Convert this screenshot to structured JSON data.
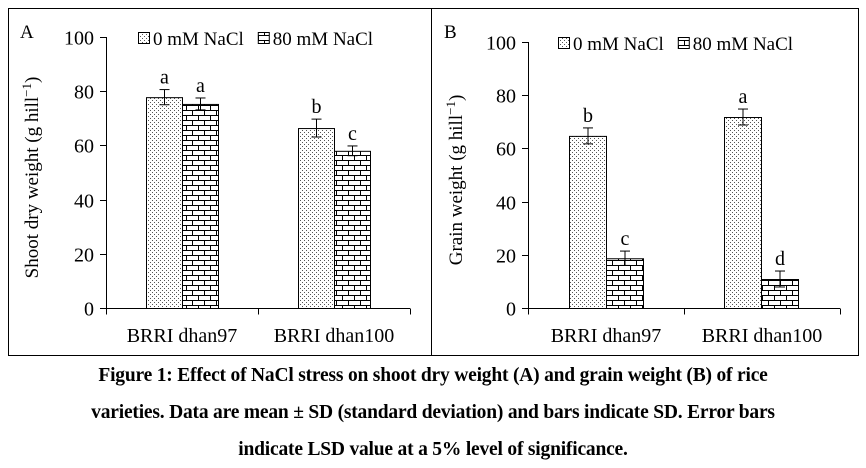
{
  "chart_data": [
    {
      "type": "bar",
      "panel_label": "A",
      "title": "",
      "xlabel": "",
      "ylabel": "Shoot dry weight (g hill",
      "ylabel_sup": "−1",
      "ylabel_close": ")",
      "ylim": [
        0,
        100
      ],
      "yticks": [
        0,
        20,
        40,
        60,
        80,
        100
      ],
      "categories": [
        "BRRI dhan97",
        "BRRI dhan100"
      ],
      "legend_position": "top",
      "series": [
        {
          "name": "0 mM NaCl",
          "pattern": "dots",
          "values": [
            77.8,
            66.4
          ],
          "errors": [
            2.8,
            3.3
          ],
          "letters": [
            "a",
            "b"
          ]
        },
        {
          "name": "80 mM NaCl",
          "pattern": "bricks",
          "values": [
            75.3,
            58.0
          ],
          "errors": [
            2.2,
            1.8
          ],
          "letters": [
            "a",
            "c"
          ]
        }
      ]
    },
    {
      "type": "bar",
      "panel_label": "B",
      "title": "",
      "xlabel": "",
      "ylabel": "Grain weight (g hill",
      "ylabel_sup": "−1",
      "ylabel_close": ")",
      "ylim": [
        0,
        100
      ],
      "yticks": [
        0,
        20,
        40,
        60,
        80,
        100
      ],
      "categories": [
        "BRRI dhan97",
        "BRRI dhan100"
      ],
      "legend_position": "top",
      "series": [
        {
          "name": "0 mM NaCl",
          "pattern": "dots",
          "values": [
            64.7,
            71.8
          ],
          "errors": [
            3.0,
            3.0
          ],
          "letters": [
            "b",
            "a"
          ]
        },
        {
          "name": "80 mM NaCl",
          "pattern": "bricks",
          "values": [
            18.7,
            10.9
          ],
          "errors": [
            2.7,
            3.0
          ],
          "letters": [
            "c",
            "d"
          ]
        }
      ]
    }
  ],
  "caption": {
    "line1": "Figure 1: Effect of NaCl stress on shoot dry weight (A) and grain weight (B) of rice",
    "line2": "varieties. Data are mean ± SD (standard deviation) and bars indicate SD. Error bars",
    "line3": "indicate LSD value at a 5% level of significance."
  }
}
